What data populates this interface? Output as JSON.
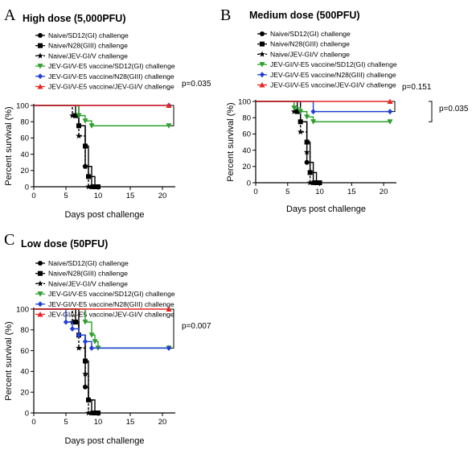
{
  "chart_data": [
    {
      "type": "line",
      "panel": "A",
      "title": "High dose (5,000PFU)",
      "xlabel": "Days post challenge",
      "ylabel": "Percent survival (%)",
      "xlim": [
        0,
        22
      ],
      "ylim": [
        0,
        100
      ],
      "xticks": [
        0,
        5,
        10,
        15,
        20
      ],
      "yticks": [
        0,
        20,
        40,
        60,
        80,
        100
      ],
      "legend": [
        "Naive/SD12(GI) challenge",
        "Naive/N28(GIII) challenge",
        "Naive/JEV-GI/V challenge",
        "JEV-GI/V-E5 vaccine/SD12(GI) challenge",
        "JEV-GI/V-E5 vaccine/N28(GIII) challenge",
        "JEV-GI/V-E5 vaccine/JEV-GI/V challenge"
      ],
      "annotations": [
        {
          "text": "p=0.035"
        }
      ],
      "series": [
        {
          "name": "Naive/SD12(GI) challenge",
          "color": "#000000",
          "marker": "circle",
          "dash": "solid",
          "points": [
            [
              0,
              100
            ],
            [
              7,
              100
            ],
            [
              7,
              75
            ],
            [
              8,
              75
            ],
            [
              8,
              25
            ],
            [
              9,
              25
            ],
            [
              9,
              0
            ],
            [
              10,
              0
            ]
          ]
        },
        {
          "name": "Naive/N28(GIII) challenge",
          "color": "#000000",
          "marker": "square",
          "dash": "solid",
          "points": [
            [
              0,
              100
            ],
            [
              6.5,
              100
            ],
            [
              6.5,
              87.5
            ],
            [
              7,
              87.5
            ],
            [
              7,
              75
            ],
            [
              8,
              75
            ],
            [
              8,
              50
            ],
            [
              8.5,
              50
            ],
            [
              8.5,
              12.5
            ],
            [
              9.5,
              12.5
            ],
            [
              9.5,
              0
            ],
            [
              10,
              0
            ]
          ]
        },
        {
          "name": "Naive/JEV-GI/V challenge",
          "color": "#000000",
          "marker": "star",
          "dash": "dashed",
          "points": [
            [
              0,
              100
            ],
            [
              6,
              100
            ],
            [
              6,
              87.5
            ],
            [
              7,
              87.5
            ],
            [
              7,
              62.5
            ],
            [
              8,
              62.5
            ],
            [
              8,
              25
            ],
            [
              8.5,
              25
            ],
            [
              8.5,
              0
            ],
            [
              9,
              0
            ]
          ]
        },
        {
          "name": "JEV-GI/V-E5 vaccine/SD12(GI) challenge",
          "color": "#2ca02c",
          "marker": "triangle-down",
          "dash": "solid",
          "points": [
            [
              0,
              100
            ],
            [
              7,
              100
            ],
            [
              7,
              87.5
            ],
            [
              8,
              87.5
            ],
            [
              8,
              81
            ],
            [
              9,
              81
            ],
            [
              9,
              75
            ],
            [
              21,
              75
            ]
          ]
        },
        {
          "name": "JEV-GI/V-E5 vaccine/N28(GIII) challenge",
          "color": "#1f3fd6",
          "marker": "diamond",
          "dash": "solid",
          "points": [
            [
              0,
              100
            ],
            [
              21,
              100
            ]
          ]
        },
        {
          "name": "JEV-GI/V-E5 vaccine/JEV-GI/V challenge",
          "color": "#e8231f",
          "marker": "triangle",
          "dash": "solid",
          "points": [
            [
              0,
              100
            ],
            [
              21,
              100
            ]
          ]
        }
      ]
    },
    {
      "type": "line",
      "panel": "B",
      "title": "Medium dose (500PFU)",
      "xlabel": "Days post challenge",
      "ylabel": "Percent survival (%)",
      "xlim": [
        0,
        22
      ],
      "ylim": [
        0,
        100
      ],
      "xticks": [
        0,
        5,
        10,
        15,
        20
      ],
      "yticks": [
        0,
        20,
        40,
        60,
        80,
        100
      ],
      "legend": [
        "Naive/SD12(GI) challenge",
        "Naive/N28(GIII) challenge",
        "Naive/JEV-GI/V challenge",
        "JEV-GI/V-E5 vaccine/SD12(GI) challenge",
        "JEV-GI/V-E5 vaccine/N28(GIII) challenge",
        "JEV-GI/V-E5 vaccine/JEV-GI/V challenge"
      ],
      "annotations": [
        {
          "text": "p=0.151"
        },
        {
          "text": "p=0.035"
        }
      ],
      "series": [
        {
          "name": "Naive/SD12(GI) challenge",
          "color": "#000000",
          "marker": "circle",
          "dash": "solid",
          "points": [
            [
              0,
              100
            ],
            [
              7,
              100
            ],
            [
              7,
              75
            ],
            [
              8,
              75
            ],
            [
              8,
              25
            ],
            [
              9,
              25
            ],
            [
              9,
              0
            ],
            [
              10,
              0
            ]
          ]
        },
        {
          "name": "Naive/N28(GIII) challenge",
          "color": "#000000",
          "marker": "square",
          "dash": "solid",
          "points": [
            [
              0,
              100
            ],
            [
              6.5,
              100
            ],
            [
              6.5,
              87.5
            ],
            [
              7,
              87.5
            ],
            [
              7,
              75
            ],
            [
              8,
              75
            ],
            [
              8,
              50
            ],
            [
              8.5,
              50
            ],
            [
              8.5,
              12.5
            ],
            [
              9.5,
              12.5
            ],
            [
              9.5,
              0
            ],
            [
              10,
              0
            ]
          ]
        },
        {
          "name": "Naive/JEV-GI/V challenge",
          "color": "#000000",
          "marker": "star",
          "dash": "dashed",
          "points": [
            [
              0,
              100
            ],
            [
              6,
              100
            ],
            [
              6,
              87.5
            ],
            [
              7,
              87.5
            ],
            [
              7,
              62.5
            ],
            [
              8,
              62.5
            ],
            [
              8,
              37.5
            ],
            [
              8.5,
              37.5
            ],
            [
              8.5,
              0
            ],
            [
              9,
              0
            ]
          ]
        },
        {
          "name": "JEV-GI/V-E5 vaccine/SD12(GI) challenge",
          "color": "#2ca02c",
          "marker": "triangle-down",
          "dash": "solid",
          "points": [
            [
              0,
              100
            ],
            [
              6,
              100
            ],
            [
              6,
              92
            ],
            [
              7,
              92
            ],
            [
              7,
              87.5
            ],
            [
              8,
              87.5
            ],
            [
              8,
              81
            ],
            [
              9,
              81
            ],
            [
              9,
              75
            ],
            [
              21,
              75
            ]
          ]
        },
        {
          "name": "JEV-GI/V-E5 vaccine/N28(GIII) challenge",
          "color": "#1f3fd6",
          "marker": "diamond",
          "dash": "solid",
          "points": [
            [
              0,
              100
            ],
            [
              9,
              100
            ],
            [
              9,
              87.5
            ],
            [
              21,
              87.5
            ]
          ]
        },
        {
          "name": "JEV-GI/V-E5 vaccine/JEV-GI/V challenge",
          "color": "#e8231f",
          "marker": "triangle",
          "dash": "solid",
          "points": [
            [
              0,
              100
            ],
            [
              21,
              100
            ]
          ]
        }
      ]
    },
    {
      "type": "line",
      "panel": "C",
      "title": "Low dose (50PFU)",
      "xlabel": "Days post challenge",
      "ylabel": "Percent survival (%)",
      "xlim": [
        0,
        22
      ],
      "ylim": [
        0,
        100
      ],
      "xticks": [
        0,
        5,
        10,
        15,
        20
      ],
      "yticks": [
        0,
        20,
        40,
        60,
        80,
        100
      ],
      "legend": [
        "Naive/SD12(GI) challenge",
        "Naive/N28(GIII) challenge",
        "Naive/JEV-GI/V challenge",
        "JEV-GI/V-E5 vaccine/SD12(GI) challenge",
        "JEV-GI/V-E5 vaccine/N28(GIII) challenge",
        "JEV-GI/V-E5 vaccine/JEV-GI/V challenge"
      ],
      "annotations": [
        {
          "text": "p=0.007"
        }
      ],
      "series": [
        {
          "name": "Naive/SD12(GI) challenge",
          "color": "#000000",
          "marker": "circle",
          "dash": "solid",
          "points": [
            [
              0,
              100
            ],
            [
              7,
              100
            ],
            [
              7,
              75
            ],
            [
              8,
              75
            ],
            [
              8,
              25
            ],
            [
              8.5,
              25
            ],
            [
              8.5,
              12.5
            ],
            [
              9,
              12.5
            ],
            [
              9,
              0
            ],
            [
              10,
              0
            ]
          ]
        },
        {
          "name": "Naive/N28(GIII) challenge",
          "color": "#000000",
          "marker": "square",
          "dash": "solid",
          "points": [
            [
              0,
              100
            ],
            [
              6.5,
              100
            ],
            [
              6.5,
              87.5
            ],
            [
              7,
              87.5
            ],
            [
              7,
              75
            ],
            [
              8,
              75
            ],
            [
              8,
              50
            ],
            [
              8.5,
              50
            ],
            [
              8.5,
              12.5
            ],
            [
              9.5,
              12.5
            ],
            [
              9.5,
              0
            ],
            [
              10,
              0
            ]
          ]
        },
        {
          "name": "Naive/JEV-GI/V challenge",
          "color": "#000000",
          "marker": "star",
          "dash": "dashed",
          "points": [
            [
              0,
              100
            ],
            [
              6,
              100
            ],
            [
              6,
              87.5
            ],
            [
              7,
              87.5
            ],
            [
              7,
              62.5
            ],
            [
              8,
              62.5
            ],
            [
              8,
              37.5
            ],
            [
              8.5,
              37.5
            ],
            [
              8.5,
              0
            ],
            [
              9,
              0
            ]
          ]
        },
        {
          "name": "JEV-GI/V-E5 vaccine/SD12(GI) challenge",
          "color": "#2ca02c",
          "marker": "triangle-down",
          "dash": "solid",
          "points": [
            [
              0,
              100
            ],
            [
              8,
              100
            ],
            [
              8,
              87.5
            ],
            [
              9,
              87.5
            ],
            [
              9,
              75
            ],
            [
              9.5,
              75
            ],
            [
              9.5,
              68.75
            ],
            [
              10,
              68.75
            ],
            [
              10,
              62.5
            ],
            [
              21,
              62.5
            ]
          ]
        },
        {
          "name": "JEV-GI/V-E5 vaccine/N28(GIII) challenge",
          "color": "#1f3fd6",
          "marker": "diamond",
          "dash": "solid",
          "points": [
            [
              0,
              100
            ],
            [
              5,
              100
            ],
            [
              5,
              87.5
            ],
            [
              6,
              87.5
            ],
            [
              6,
              81
            ],
            [
              7,
              81
            ],
            [
              7,
              75
            ],
            [
              8,
              75
            ],
            [
              8,
              68.75
            ],
            [
              9,
              68.75
            ],
            [
              9,
              62.5
            ],
            [
              21,
              62.5
            ]
          ]
        },
        {
          "name": "JEV-GI/V-E5 vaccine/JEV-GI/V challenge",
          "color": "#e8231f",
          "marker": "triangle",
          "dash": "solid",
          "points": [
            [
              0,
              100
            ],
            [
              21,
              100
            ]
          ]
        }
      ]
    }
  ]
}
